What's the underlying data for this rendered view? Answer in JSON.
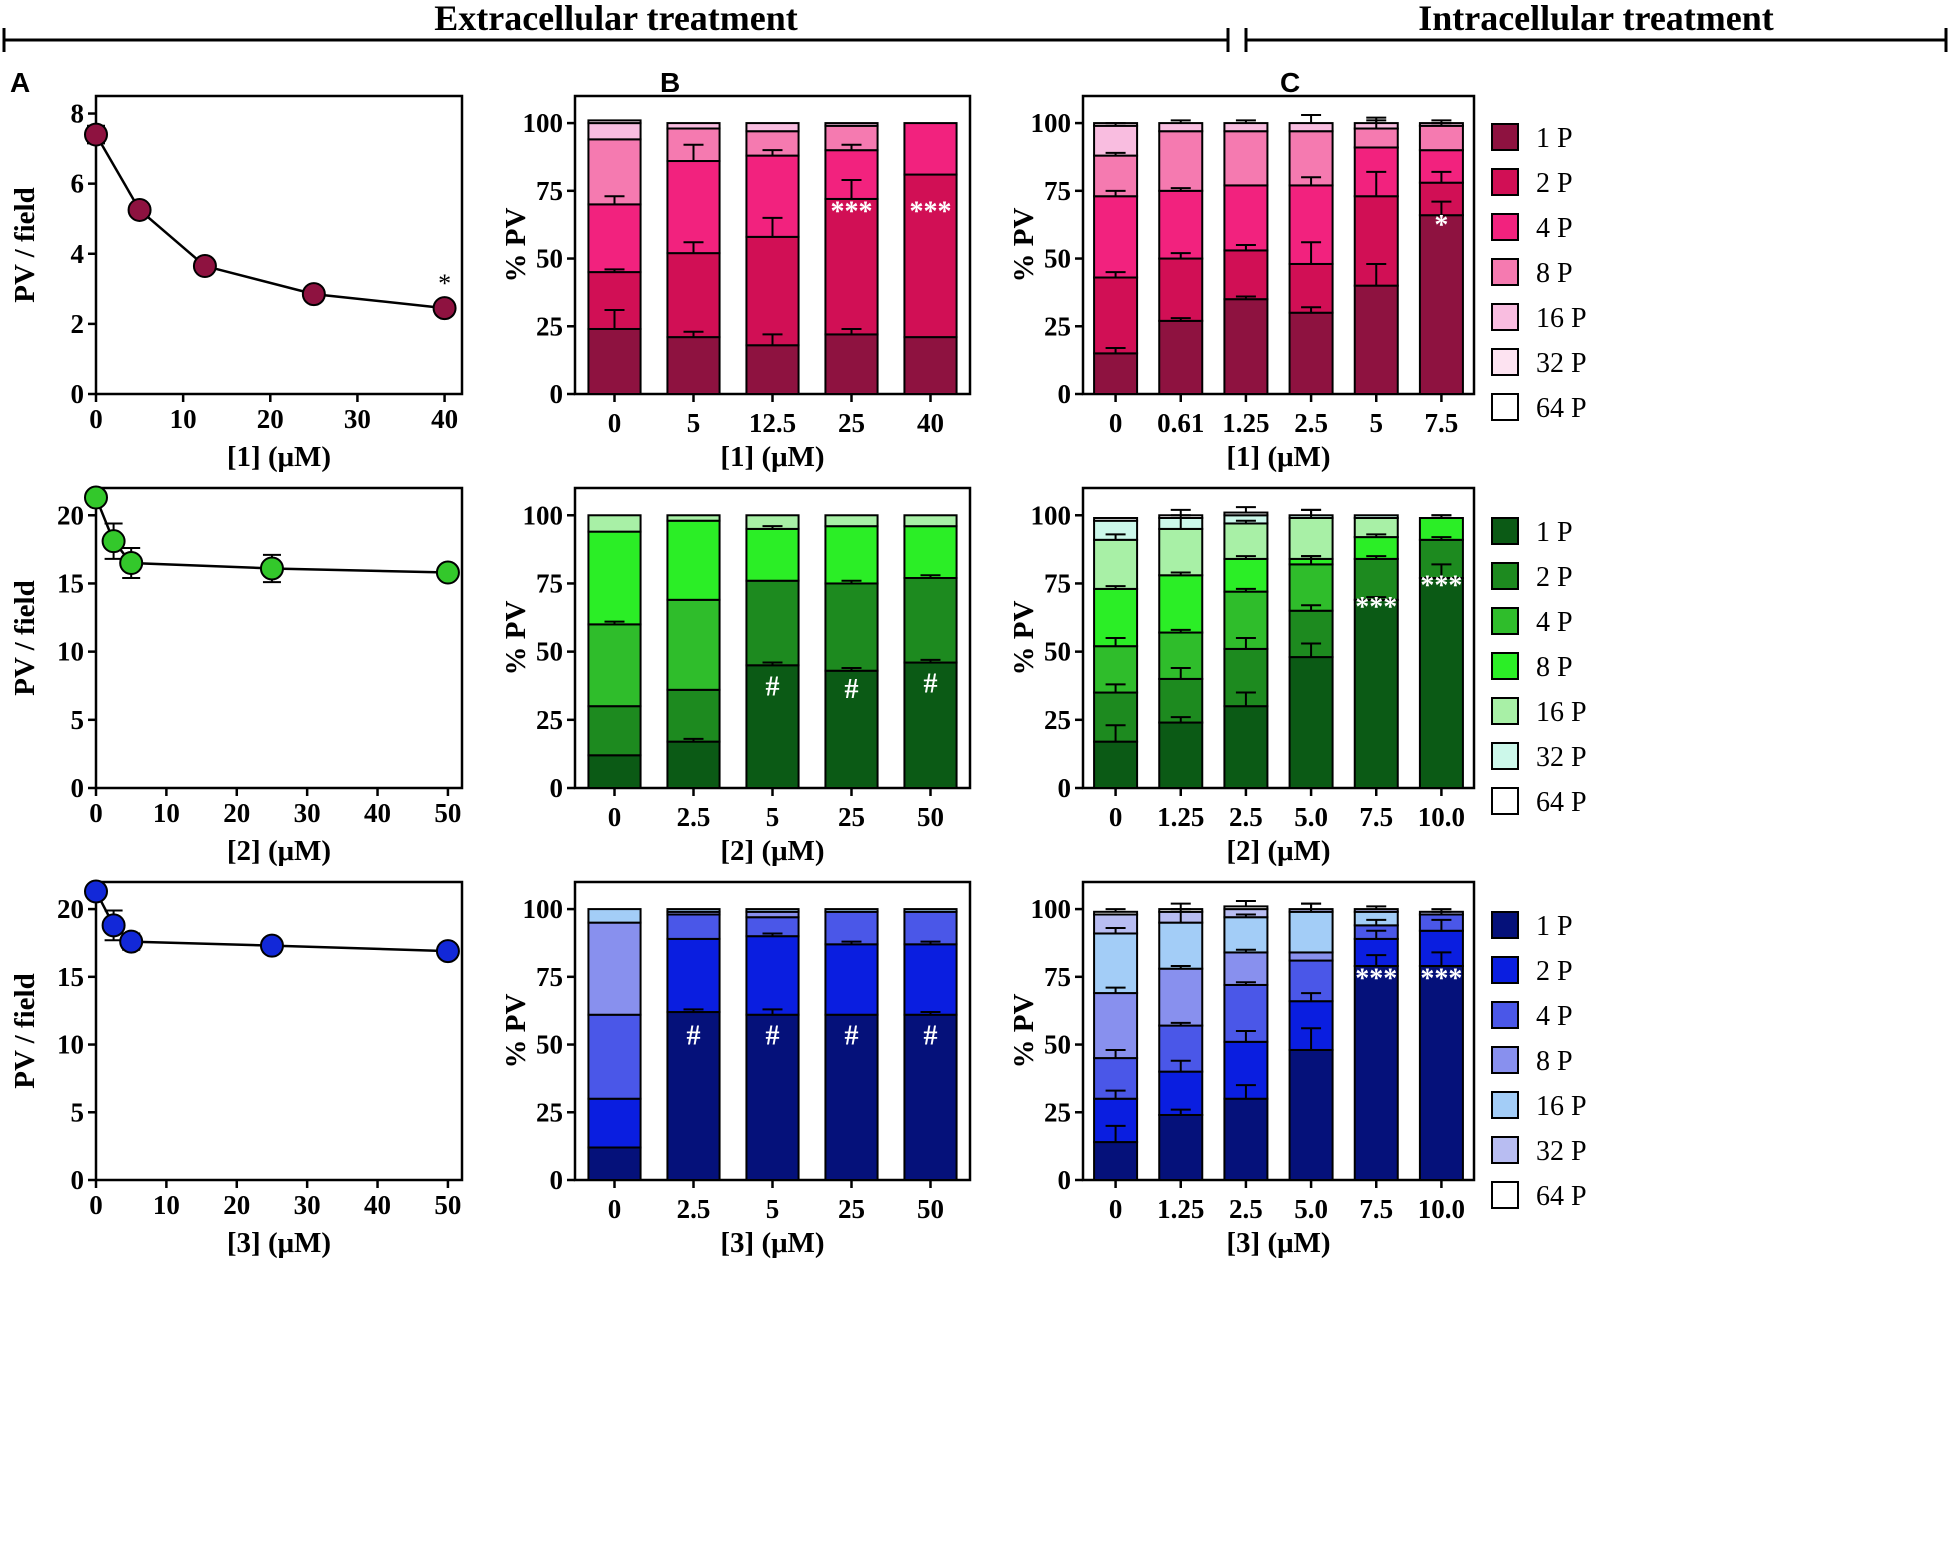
{
  "headers": {
    "extracellular": "Extracellular treatment",
    "intracellular": "Intracellular treatment"
  },
  "panel_letters": [
    "A",
    "B",
    "C"
  ],
  "legend_labels": [
    "1 P",
    "2 P",
    "4 P",
    "8 P",
    "16 P",
    "32 P",
    "64 P"
  ],
  "colors": {
    "pink": [
      "#8e1240",
      "#d10f55",
      "#f2227e",
      "#f57ab0",
      "#f9bde0",
      "#fde3f1",
      "#ffffff"
    ],
    "green": [
      "#0b5a15",
      "#1d8a1f",
      "#2fbd2b",
      "#2bee26",
      "#a8f0a6",
      "#ccf8ea",
      "#ffffff"
    ],
    "blue": [
      "#05117a",
      "#0a1ee0",
      "#4a57e8",
      "#8890ee",
      "#a3cdf7",
      "#b8bdf2",
      "#ffffff"
    ],
    "line_markers": [
      "#8e1240",
      "#33c82b",
      "#1228d8"
    ]
  },
  "chart_data": [
    {
      "id": "A1",
      "type": "scatter",
      "xlabel": "[1] (μM)",
      "ylabel": "PV / field",
      "xlim": [
        0,
        42
      ],
      "ylim": [
        0,
        8.5
      ],
      "xticks": [
        0,
        10,
        20,
        30,
        40
      ],
      "yticks": [
        0,
        2,
        4,
        6,
        8
      ],
      "x": [
        0,
        5,
        12.5,
        25,
        40
      ],
      "y": [
        7.4,
        5.25,
        3.65,
        2.85,
        2.45
      ],
      "err": [
        0.25,
        0.1,
        0.1,
        0.1,
        0.1
      ],
      "annotations": [
        {
          "x": 40,
          "text": "*"
        }
      ]
    },
    {
      "id": "A2",
      "type": "scatter",
      "xlabel": "[2] (μM)",
      "ylabel": "PV / field",
      "xlim": [
        0,
        52
      ],
      "ylim": [
        0,
        22
      ],
      "xticks": [
        0,
        10,
        20,
        30,
        40,
        50
      ],
      "yticks": [
        0,
        5,
        10,
        15,
        20
      ],
      "x": [
        0,
        2.5,
        5,
        25,
        50
      ],
      "y": [
        21.3,
        18.1,
        16.5,
        16.1,
        15.8
      ],
      "err": [
        0.4,
        1.3,
        1.1,
        1.0,
        0.4
      ],
      "annotations": []
    },
    {
      "id": "A3",
      "type": "scatter",
      "xlabel": "[3] (μM)",
      "ylabel": "PV / field",
      "xlim": [
        0,
        52
      ],
      "ylim": [
        0,
        22
      ],
      "xticks": [
        0,
        10,
        20,
        30,
        40,
        50
      ],
      "yticks": [
        0,
        5,
        10,
        15,
        20
      ],
      "x": [
        0,
        2.5,
        5,
        25,
        50
      ],
      "y": [
        21.3,
        18.8,
        17.6,
        17.3,
        16.9
      ],
      "err": [
        0.4,
        1.1,
        0.6,
        0.5,
        0.3
      ],
      "annotations": []
    },
    {
      "id": "B1",
      "type": "bar",
      "stacked": true,
      "xlabel": "[1] (μM)",
      "ylabel": "% PV",
      "ylim": [
        0,
        110
      ],
      "yticks": [
        0,
        25,
        50,
        75,
        100
      ],
      "categories": [
        "0",
        "5",
        "12.5",
        "25",
        "40"
      ],
      "series": [
        {
          "name": "1 P",
          "values": [
            24,
            21,
            18,
            22,
            21
          ],
          "err": [
            7,
            2,
            4,
            2,
            0
          ]
        },
        {
          "name": "2 P",
          "values": [
            21,
            31,
            40,
            50,
            60
          ],
          "err": [
            1,
            4,
            7,
            7,
            0
          ]
        },
        {
          "name": "4 P",
          "values": [
            25,
            34,
            30,
            18,
            19
          ],
          "err": [
            3,
            6,
            2,
            2,
            0
          ]
        },
        {
          "name": "8 P",
          "values": [
            24,
            12,
            9,
            9,
            0
          ],
          "err": [
            0,
            0,
            0,
            0,
            0
          ]
        },
        {
          "name": "16 P",
          "values": [
            6,
            2,
            3,
            1,
            0
          ],
          "err": [
            0,
            0,
            0,
            0,
            0
          ]
        },
        {
          "name": "32 P",
          "values": [
            1,
            0,
            0,
            0,
            0
          ],
          "err": [
            0,
            0,
            0,
            0,
            0
          ]
        },
        {
          "name": "64 P",
          "values": [
            0,
            0,
            0,
            0,
            0
          ],
          "err": [
            0,
            0,
            0,
            0,
            0
          ]
        }
      ],
      "annotations": [
        {
          "category": 3,
          "y": 64,
          "text": "***"
        },
        {
          "category": 4,
          "y": 64,
          "text": "***"
        }
      ]
    },
    {
      "id": "C1",
      "type": "bar",
      "stacked": true,
      "xlabel": "[1] (μM)",
      "ylabel": "% PV",
      "ylim": [
        0,
        110
      ],
      "yticks": [
        0,
        25,
        50,
        75,
        100
      ],
      "categories": [
        "0",
        "0.61",
        "1.25",
        "2.5",
        "5",
        "7.5"
      ],
      "series": [
        {
          "name": "1 P",
          "values": [
            15,
            27,
            35,
            30,
            40,
            66
          ],
          "err": [
            2,
            1,
            1,
            2,
            8,
            5
          ]
        },
        {
          "name": "2 P",
          "values": [
            28,
            23,
            18,
            18,
            33,
            12
          ],
          "err": [
            2,
            2,
            2,
            8,
            9,
            4
          ]
        },
        {
          "name": "4 P",
          "values": [
            30,
            25,
            24,
            29,
            18,
            12
          ],
          "err": [
            2,
            1,
            0,
            3,
            0,
            0
          ]
        },
        {
          "name": "8 P",
          "values": [
            15,
            22,
            20,
            20,
            7,
            9
          ],
          "err": [
            1,
            0,
            0,
            0,
            4,
            1
          ]
        },
        {
          "name": "16 P",
          "values": [
            11,
            3,
            3,
            3,
            2,
            1
          ],
          "err": [
            1,
            1,
            1,
            3,
            1,
            1
          ]
        },
        {
          "name": "32 P",
          "values": [
            1,
            0,
            0,
            0,
            0,
            0
          ],
          "err": [
            0,
            0,
            0,
            0,
            0,
            0
          ]
        },
        {
          "name": "64 P",
          "values": [
            0,
            0,
            0,
            0,
            0,
            0
          ],
          "err": [
            0,
            0,
            0,
            0,
            0,
            0
          ]
        }
      ],
      "annotations": [
        {
          "category": 5,
          "y": 59,
          "text": "*"
        }
      ]
    },
    {
      "id": "B2",
      "type": "bar",
      "stacked": true,
      "xlabel": "[2] (μM)",
      "ylabel": "% PV",
      "ylim": [
        0,
        110
      ],
      "yticks": [
        0,
        25,
        50,
        75,
        100
      ],
      "categories": [
        "0",
        "2.5",
        "5",
        "25",
        "50"
      ],
      "series": [
        {
          "name": "1 P",
          "values": [
            12,
            17,
            45,
            43,
            46
          ],
          "err": [
            0,
            1,
            1,
            1,
            1
          ]
        },
        {
          "name": "2 P",
          "values": [
            18,
            19,
            31,
            32,
            31
          ],
          "err": [
            0,
            0,
            0,
            1,
            1
          ]
        },
        {
          "name": "4 P",
          "values": [
            30,
            33,
            0,
            0,
            0
          ],
          "err": [
            1,
            0,
            0,
            0,
            0
          ]
        },
        {
          "name": "8 P",
          "values": [
            34,
            29,
            19,
            21,
            19
          ],
          "err": [
            0,
            0,
            1,
            0,
            0
          ]
        },
        {
          "name": "16 P",
          "values": [
            6,
            2,
            5,
            4,
            4
          ],
          "err": [
            0,
            0,
            0,
            0,
            0
          ]
        },
        {
          "name": "32 P",
          "values": [
            0,
            0,
            0,
            0,
            0
          ],
          "err": [
            0,
            0,
            0,
            0,
            0
          ]
        },
        {
          "name": "64 P",
          "values": [
            0,
            0,
            0,
            0,
            0
          ],
          "err": [
            0,
            0,
            0,
            0,
            0
          ]
        }
      ],
      "annotations": [
        {
          "category": 2,
          "y": 34,
          "text": "#"
        },
        {
          "category": 3,
          "y": 33,
          "text": "#"
        },
        {
          "category": 4,
          "y": 35,
          "text": "#"
        }
      ]
    },
    {
      "id": "C2",
      "type": "bar",
      "stacked": true,
      "xlabel": "[2] (μM)",
      "ylabel": "% PV",
      "ylim": [
        0,
        110
      ],
      "yticks": [
        0,
        25,
        50,
        75,
        100
      ],
      "categories": [
        "0",
        "1.25",
        "2.5",
        "5.0",
        "7.5",
        "10.0"
      ],
      "series": [
        {
          "name": "1 P",
          "values": [
            17,
            24,
            30,
            48,
            69,
            77
          ],
          "err": [
            6,
            2,
            5,
            5,
            1,
            5
          ]
        },
        {
          "name": "2 P",
          "values": [
            18,
            16,
            21,
            17,
            15,
            14
          ],
          "err": [
            3,
            4,
            4,
            2,
            1,
            1
          ]
        },
        {
          "name": "4 P",
          "values": [
            17,
            17,
            21,
            17,
            0,
            0
          ],
          "err": [
            3,
            1,
            1,
            3,
            0,
            0
          ]
        },
        {
          "name": "8 P",
          "values": [
            21,
            21,
            12,
            2,
            8,
            8
          ],
          "err": [
            1,
            1,
            1,
            1,
            1,
            1
          ]
        },
        {
          "name": "16 P",
          "values": [
            18,
            17,
            13,
            15,
            7,
            0
          ],
          "err": [
            2,
            5,
            1,
            3,
            0,
            0
          ]
        },
        {
          "name": "32 P",
          "values": [
            7,
            4,
            3,
            1,
            1,
            0
          ],
          "err": [
            0,
            0,
            0,
            0,
            0,
            0
          ]
        },
        {
          "name": "64 P",
          "values": [
            1,
            1,
            1,
            0,
            0,
            0
          ],
          "err": [
            0,
            2,
            2,
            2,
            0,
            1
          ]
        }
      ],
      "annotations": [
        {
          "category": 4,
          "y": 63,
          "text": "***"
        },
        {
          "category": 5,
          "y": 71,
          "text": "***"
        }
      ]
    },
    {
      "id": "B3",
      "type": "bar",
      "stacked": true,
      "xlabel": "[3] (μM)",
      "ylabel": "% PV",
      "ylim": [
        0,
        110
      ],
      "yticks": [
        0,
        25,
        50,
        75,
        100
      ],
      "categories": [
        "0",
        "2.5",
        "5",
        "25",
        "50"
      ],
      "series": [
        {
          "name": "1 P",
          "values": [
            12,
            62,
            61,
            61,
            61
          ],
          "err": [
            0,
            1,
            2,
            0,
            1
          ]
        },
        {
          "name": "2 P",
          "values": [
            18,
            27,
            29,
            26,
            26
          ],
          "err": [
            0,
            0,
            1,
            1,
            1
          ]
        },
        {
          "name": "4 P",
          "values": [
            31,
            9,
            7,
            12,
            12
          ],
          "err": [
            0,
            0,
            0,
            0,
            0
          ]
        },
        {
          "name": "8 P",
          "values": [
            34,
            1,
            2,
            0,
            0
          ],
          "err": [
            0,
            0,
            0,
            0,
            0
          ]
        },
        {
          "name": "16 P",
          "values": [
            5,
            1,
            1,
            1,
            1
          ],
          "err": [
            0,
            0,
            0,
            0,
            0
          ]
        },
        {
          "name": "32 P",
          "values": [
            0,
            0,
            0,
            0,
            0
          ],
          "err": [
            0,
            0,
            0,
            0,
            0
          ]
        },
        {
          "name": "64 P",
          "values": [
            0,
            0,
            0,
            0,
            0
          ],
          "err": [
            0,
            0,
            0,
            0,
            0
          ]
        }
      ],
      "annotations": [
        {
          "category": 1,
          "y": 50,
          "text": "#"
        },
        {
          "category": 2,
          "y": 50,
          "text": "#"
        },
        {
          "category": 3,
          "y": 50,
          "text": "#"
        },
        {
          "category": 4,
          "y": 50,
          "text": "#"
        }
      ]
    },
    {
      "id": "C3",
      "type": "bar",
      "stacked": true,
      "xlabel": "[3] (μM)",
      "ylabel": "% PV",
      "ylim": [
        0,
        110
      ],
      "yticks": [
        0,
        25,
        50,
        75,
        100
      ],
      "categories": [
        "0",
        "1.25",
        "2.5",
        "5.0",
        "7.5",
        "10.0"
      ],
      "series": [
        {
          "name": "1 P",
          "values": [
            14,
            24,
            30,
            48,
            79,
            79
          ],
          "err": [
            6,
            2,
            5,
            8,
            4,
            5
          ]
        },
        {
          "name": "2 P",
          "values": [
            16,
            16,
            21,
            18,
            10,
            13
          ],
          "err": [
            3,
            4,
            4,
            3,
            3,
            4
          ]
        },
        {
          "name": "4 P",
          "values": [
            15,
            17,
            21,
            15,
            5,
            6
          ],
          "err": [
            3,
            1,
            1,
            0,
            2,
            1
          ]
        },
        {
          "name": "8 P",
          "values": [
            24,
            21,
            12,
            3,
            0,
            0
          ],
          "err": [
            2,
            1,
            1,
            0,
            0,
            0
          ]
        },
        {
          "name": "16 P",
          "values": [
            22,
            17,
            13,
            15,
            5,
            0
          ],
          "err": [
            2,
            5,
            1,
            3,
            0,
            0
          ]
        },
        {
          "name": "32 P",
          "values": [
            7,
            4,
            3,
            1,
            1,
            1
          ],
          "err": [
            0,
            0,
            0,
            0,
            0,
            0
          ]
        },
        {
          "name": "64 P",
          "values": [
            1,
            1,
            1,
            0,
            0,
            0
          ],
          "err": [
            1,
            2,
            2,
            2,
            1,
            1
          ]
        }
      ],
      "annotations": [
        {
          "category": 4,
          "y": 71,
          "text": "***"
        },
        {
          "category": 5,
          "y": 71,
          "text": "***"
        }
      ]
    }
  ]
}
